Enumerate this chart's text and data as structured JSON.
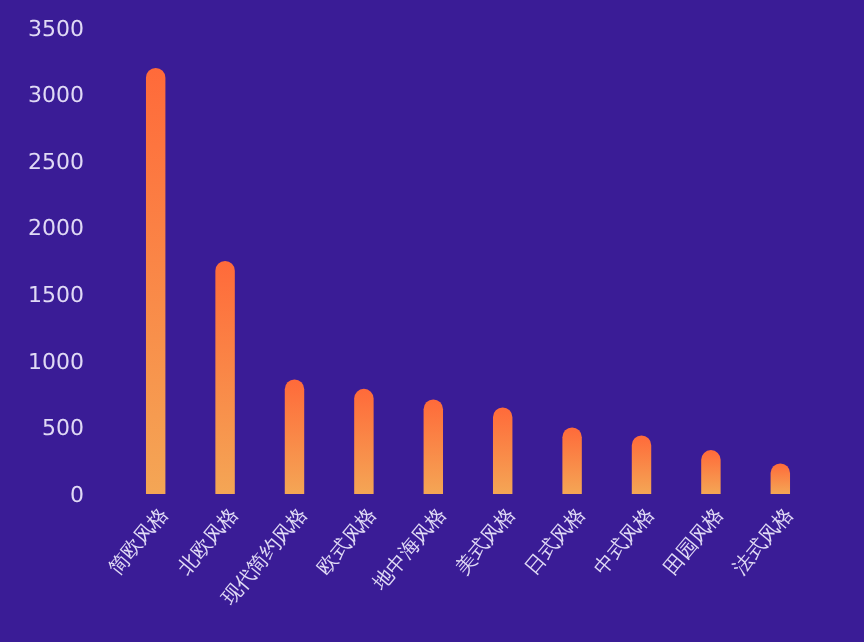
{
  "chart_data": {
    "type": "bar",
    "categories": [
      "简欧风格",
      "北欧风格",
      "现代简约风格",
      "欧式风格",
      "地中海风格",
      "美式风格",
      "日式风格",
      "中式风格",
      "田园风格",
      "法式风格"
    ],
    "values": [
      3200,
      1750,
      860,
      790,
      710,
      650,
      500,
      440,
      330,
      230
    ],
    "color": "#ff6a3a",
    "ylim": [
      0,
      3500
    ],
    "yticks": [
      0,
      500,
      1000,
      1500,
      2000,
      2500,
      3000,
      3500
    ],
    "grid": false
  }
}
